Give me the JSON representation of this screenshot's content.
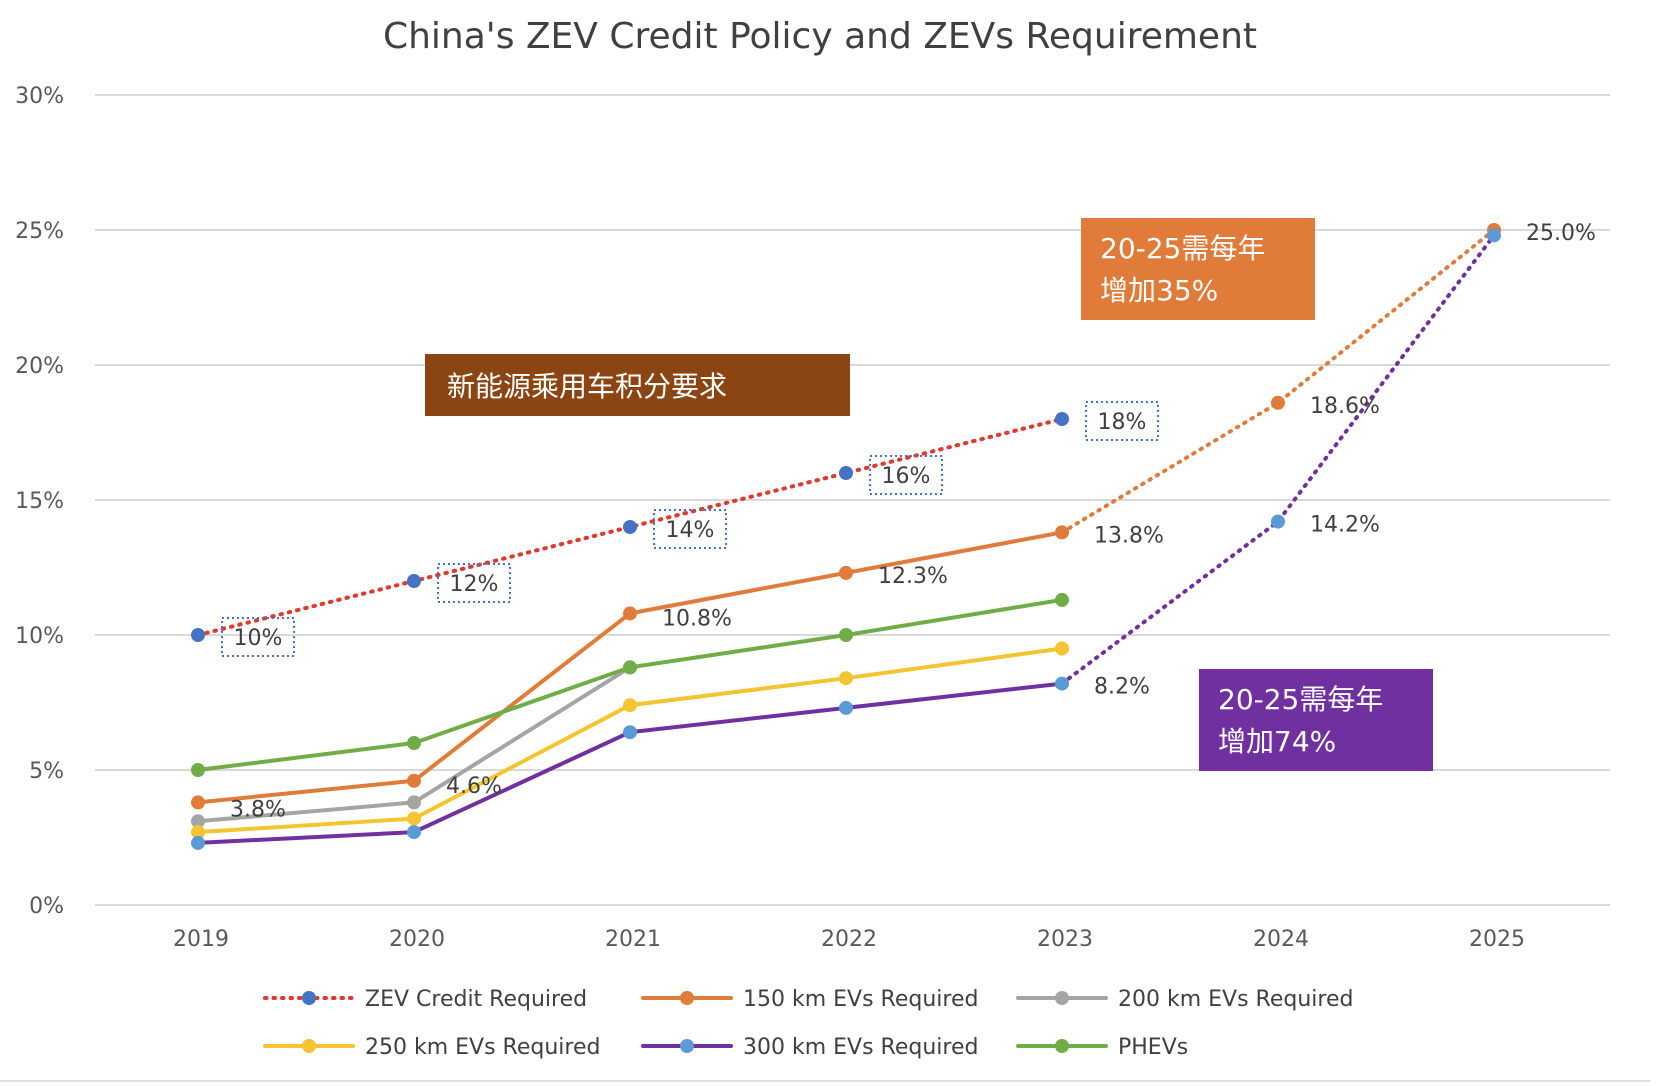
{
  "chart_data": {
    "type": "line",
    "title": "China's ZEV Credit Policy and ZEVs Requirement",
    "categories": [
      "2019",
      "2020",
      "2021",
      "2022",
      "2023",
      "2024",
      "2025"
    ],
    "ylim": [
      0,
      30
    ],
    "yticks": [
      0,
      5,
      10,
      15,
      20,
      25,
      30
    ],
    "ytick_labels": [
      "0%",
      "5%",
      "10%",
      "15%",
      "20%",
      "25%",
      "30%"
    ],
    "grid": true,
    "legend_position": "bottom",
    "series": [
      {
        "name": "ZEV Credit Required",
        "style": "dotted",
        "line_color": "#e03a2f",
        "marker_color": "#4472c4",
        "values": [
          10,
          12,
          14,
          16,
          18,
          null,
          null
        ],
        "labels": [
          "10%",
          "12%",
          "14%",
          "16%",
          "18%",
          null,
          null
        ],
        "boxed_labels": true
      },
      {
        "name": "150 km EVs Required",
        "style": "solid",
        "line_color": "#e07b39",
        "marker_color": "#e07b39",
        "values": [
          3.8,
          4.6,
          10.8,
          12.3,
          13.8,
          null,
          null
        ],
        "labels": [
          "3.8%",
          "4.6%",
          "10.8%",
          "12.3%",
          "13.8%",
          null,
          null
        ]
      },
      {
        "name": "200 km EVs Required",
        "style": "solid",
        "line_color": "#a5a5a5",
        "marker_color": "#a5a5a5",
        "values": [
          3.1,
          3.8,
          8.8,
          null,
          null,
          null,
          null
        ]
      },
      {
        "name": "250 km EVs Required",
        "style": "solid",
        "line_color": "#f5c431",
        "marker_color": "#f5c431",
        "values": [
          2.7,
          3.2,
          7.4,
          8.4,
          9.5,
          null,
          null
        ]
      },
      {
        "name": "300 km EVs Required",
        "style": "solid",
        "line_color": "#7030a0",
        "marker_color": "#5b9bd5",
        "values": [
          2.3,
          2.7,
          6.4,
          7.3,
          8.2,
          null,
          null
        ],
        "labels": [
          null,
          null,
          null,
          null,
          "8.2%",
          null,
          null
        ]
      },
      {
        "name": "PHEVs",
        "style": "solid",
        "line_color": "#70ad47",
        "marker_color": "#70ad47",
        "values": [
          5.0,
          6.0,
          8.8,
          10.0,
          11.3,
          null,
          null
        ]
      }
    ],
    "projections": [
      {
        "name": "150 km projection",
        "line_color": "#e07b39",
        "marker_color": "#e07b39",
        "values": [
          null,
          null,
          null,
          null,
          13.8,
          18.6,
          25.0
        ],
        "labels": [
          null,
          null,
          null,
          null,
          null,
          "18.6%",
          "25.0%"
        ]
      },
      {
        "name": "300 km projection",
        "line_color": "#7030a0",
        "marker_color": "#5b9bd5",
        "values": [
          null,
          null,
          null,
          null,
          8.2,
          14.2,
          24.8
        ],
        "labels": [
          null,
          null,
          null,
          null,
          null,
          "14.2%",
          null
        ]
      }
    ],
    "annotations": [
      {
        "id": "credit",
        "lines": [
          "新能源乘用车积分要求"
        ],
        "color": "#8b4513"
      },
      {
        "id": "orange",
        "lines": [
          "20-25需每年",
          "增加35%"
        ],
        "color": "#e07b39"
      },
      {
        "id": "purple",
        "lines": [
          "20-25需每年",
          "增加74%"
        ],
        "color": "#7030a0"
      }
    ]
  }
}
